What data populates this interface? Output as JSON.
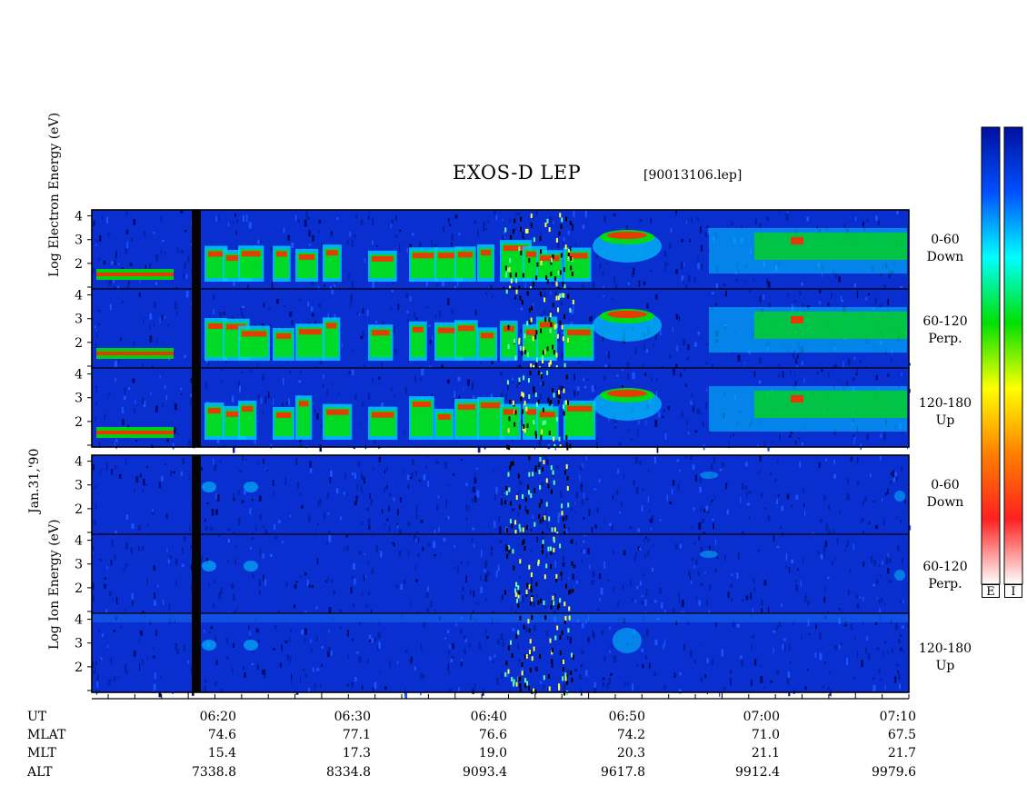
{
  "header": {
    "title": "EXOS-D LEP",
    "file": "[90013106.lep]"
  },
  "side_labels": {
    "electron_axis": "Log  Electron  Energy  (eV)",
    "ion_axis": "Log  Ion  Energy  (eV)",
    "date": "Jan.31,'90"
  },
  "panels": [
    {
      "group": "electron",
      "range": "0-60",
      "dir": "Down"
    },
    {
      "group": "electron",
      "range": "60-120",
      "dir": "Perp."
    },
    {
      "group": "electron",
      "range": "120-180",
      "dir": "Up"
    },
    {
      "group": "ion",
      "range": "0-60",
      "dir": "Down"
    },
    {
      "group": "ion",
      "range": "60-120",
      "dir": "Perp."
    },
    {
      "group": "ion",
      "range": "120-180",
      "dir": "Up"
    }
  ],
  "colorbars": {
    "labels": [
      "E",
      "I"
    ]
  },
  "orbit_table": {
    "row_labels": [
      "UT",
      "MLAT",
      "MLT",
      "ALT"
    ],
    "columns": [
      {
        "ut": "06:20",
        "mlat": "74.6",
        "mlt": "15.4",
        "alt": "7338.8"
      },
      {
        "ut": "06:30",
        "mlat": "77.1",
        "mlt": "17.3",
        "alt": "8334.8"
      },
      {
        "ut": "06:40",
        "mlat": "76.6",
        "mlt": "19.0",
        "alt": "9093.4"
      },
      {
        "ut": "06:50",
        "mlat": "74.2",
        "mlt": "20.3",
        "alt": "9617.8"
      },
      {
        "ut": "07:00",
        "mlat": "71.0",
        "mlt": "21.1",
        "alt": "9912.4"
      },
      {
        "ut": "07:10",
        "mlat": "67.5",
        "mlt": "21.7",
        "alt": "9979.6"
      }
    ]
  },
  "chart_data": {
    "type": "heatmap",
    "title": "EXOS-D LEP",
    "xlabel": "UT",
    "ylabel": "Log Energy (eV)",
    "x_ticks": [
      "06:20",
      "06:30",
      "06:40",
      "06:50",
      "07:00",
      "07:10"
    ],
    "y_ticks": [
      "1",
      "2",
      "3",
      "4"
    ],
    "ylim": [
      1,
      4.1
    ],
    "colorscale": [
      "#ffffff",
      "#ff2020",
      "#ff8000",
      "#ffff00",
      "#00e000",
      "#00ffff",
      "#0050ff",
      "#0010a0"
    ],
    "colors": {
      "background": "#0a2fd0",
      "strong": "#ff2a00",
      "mid": "#00e000",
      "weak": "#00c8ff"
    }
  }
}
